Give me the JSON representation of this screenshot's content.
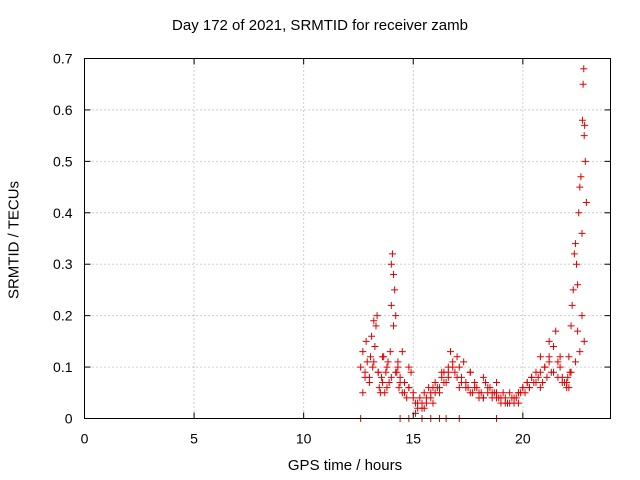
{
  "chart_data": {
    "type": "scatter",
    "title": "Day 172 of 2021, SRMTID for receiver zamb",
    "xlabel": "GPS time / hours",
    "ylabel": "SRMTID / TECUs",
    "xlim": [
      0,
      24
    ],
    "ylim": [
      0,
      0.7
    ],
    "xticks": [
      0,
      5,
      10,
      15,
      20
    ],
    "yticks": [
      0,
      0.1,
      0.2,
      0.3,
      0.4,
      0.5,
      0.6,
      0.7
    ],
    "grid": true,
    "legend": "none",
    "marker": "plus",
    "color": "#e00000",
    "series": [
      {
        "x": [
          12.6,
          12.7,
          12.8,
          12.85,
          12.9,
          13.0,
          13.05,
          13.1,
          13.15,
          13.2,
          13.25,
          13.3,
          13.35,
          13.4,
          13.45,
          13.5,
          13.55,
          13.6,
          13.65,
          13.7,
          13.75,
          13.8,
          13.85,
          13.9,
          13.95,
          14.0,
          14.05,
          14.1,
          14.15,
          14.2,
          14.25,
          14.3,
          14.35,
          14.4,
          14.5,
          14.6,
          14.7,
          14.8,
          14.9,
          15.0,
          15.1,
          15.2,
          15.3,
          15.4,
          15.5,
          15.6,
          15.7,
          15.8,
          15.9,
          16.0,
          16.1,
          16.2,
          16.3,
          16.4,
          16.5,
          16.6,
          16.7,
          16.8,
          16.9,
          17.0,
          17.1,
          17.2,
          17.3,
          17.4,
          17.5,
          17.6,
          17.7,
          17.8,
          17.9,
          18.0,
          18.1,
          18.2,
          18.3,
          18.4,
          18.5,
          18.6,
          18.7,
          18.8,
          18.9,
          19.0,
          19.1,
          19.2,
          19.3,
          19.4,
          19.5,
          19.6,
          19.7,
          19.8,
          19.9,
          20.0,
          20.1,
          20.2,
          20.3,
          20.4,
          20.5,
          20.6,
          20.7,
          20.8,
          20.9,
          21.0,
          21.1,
          21.2,
          21.3,
          21.4,
          21.5,
          21.6,
          21.7,
          21.8,
          21.9,
          22.0,
          22.05,
          22.1,
          22.15,
          22.2,
          22.25,
          22.3,
          22.35,
          22.4,
          22.45,
          22.5,
          22.55,
          22.6,
          22.65,
          22.7,
          22.72,
          22.75,
          22.78,
          22.8,
          22.82,
          22.85,
          22.9,
          12.8,
          13.0,
          13.2,
          13.4,
          13.6,
          13.8,
          14.0,
          14.2,
          14.4,
          14.6,
          14.8,
          15.0,
          15.2,
          15.4,
          15.6,
          15.8,
          16.0,
          16.2,
          16.4,
          16.6,
          16.8,
          17.0,
          17.2,
          17.4,
          17.6,
          17.8,
          18.0,
          18.2,
          18.4,
          18.6,
          18.8,
          19.0,
          19.2,
          19.4,
          19.6,
          19.8,
          20.0,
          20.2,
          20.4,
          20.6,
          20.8,
          21.0,
          21.2,
          21.4,
          21.6,
          21.8,
          22.0,
          22.2,
          22.4,
          22.6,
          22.8,
          12.7,
          14.0,
          14.1,
          14.3,
          14.5,
          14.8,
          15.1,
          15.5,
          15.9,
          16.3,
          16.6,
          17.1,
          17.6,
          18.2,
          18.8,
          19.3,
          19.8,
          20.3,
          20.8,
          21.2,
          21.7,
          22.1,
          22.5,
          22.7,
          12.6,
          14.4,
          14.8,
          15.4,
          15.8,
          16.2,
          16.5,
          17.1,
          18.8
        ],
        "y": [
          0.1,
          0.13,
          0.09,
          0.15,
          0.11,
          0.08,
          0.12,
          0.16,
          0.1,
          0.19,
          0.14,
          0.18,
          0.2,
          0.09,
          0.06,
          0.05,
          0.08,
          0.07,
          0.12,
          0.05,
          0.09,
          0.06,
          0.11,
          0.07,
          0.13,
          0.3,
          0.32,
          0.28,
          0.25,
          0.2,
          0.09,
          0.11,
          0.06,
          0.08,
          0.05,
          0.07,
          0.04,
          0.06,
          0.09,
          0.05,
          0.03,
          0.02,
          0.04,
          0.03,
          0.05,
          0.04,
          0.06,
          0.05,
          0.03,
          0.07,
          0.06,
          0.05,
          0.08,
          0.09,
          0.07,
          0.1,
          0.13,
          0.11,
          0.09,
          0.12,
          0.1,
          0.08,
          0.11,
          0.07,
          0.06,
          0.09,
          0.05,
          0.07,
          0.06,
          0.04,
          0.05,
          0.08,
          0.07,
          0.05,
          0.06,
          0.04,
          0.05,
          0.07,
          0.04,
          0.03,
          0.05,
          0.04,
          0.03,
          0.05,
          0.04,
          0.03,
          0.04,
          0.03,
          0.05,
          0.06,
          0.05,
          0.07,
          0.06,
          0.08,
          0.07,
          0.09,
          0.08,
          0.06,
          0.07,
          0.1,
          0.08,
          0.12,
          0.09,
          0.14,
          0.17,
          0.11,
          0.1,
          0.08,
          0.07,
          0.06,
          0.08,
          0.12,
          0.09,
          0.18,
          0.22,
          0.25,
          0.32,
          0.34,
          0.3,
          0.26,
          0.4,
          0.45,
          0.47,
          0.36,
          0.58,
          0.65,
          0.68,
          0.55,
          0.57,
          0.5,
          0.42,
          0.08,
          0.07,
          0.11,
          0.09,
          0.12,
          0.1,
          0.08,
          0.09,
          0.07,
          0.05,
          0.06,
          0.04,
          0.03,
          0.02,
          0.03,
          0.04,
          0.05,
          0.06,
          0.07,
          0.09,
          0.1,
          0.08,
          0.07,
          0.06,
          0.05,
          0.06,
          0.05,
          0.04,
          0.06,
          0.05,
          0.04,
          0.04,
          0.03,
          0.03,
          0.04,
          0.05,
          0.06,
          0.07,
          0.08,
          0.07,
          0.09,
          0.1,
          0.11,
          0.09,
          0.08,
          0.07,
          0.07,
          0.09,
          0.11,
          0.13,
          0.15,
          0.05,
          0.22,
          0.18,
          0.1,
          0.13,
          0.1,
          0.01,
          0.02,
          0.06,
          0.09,
          0.08,
          0.06,
          0.09,
          0.04,
          0.05,
          0.03,
          0.05,
          0.06,
          0.12,
          0.15,
          0.12,
          0.06,
          0.17,
          0.2,
          0.0,
          0.0,
          0.0,
          0.0,
          0.0,
          0.0,
          0.0,
          0.0,
          0.0
        ]
      }
    ]
  }
}
